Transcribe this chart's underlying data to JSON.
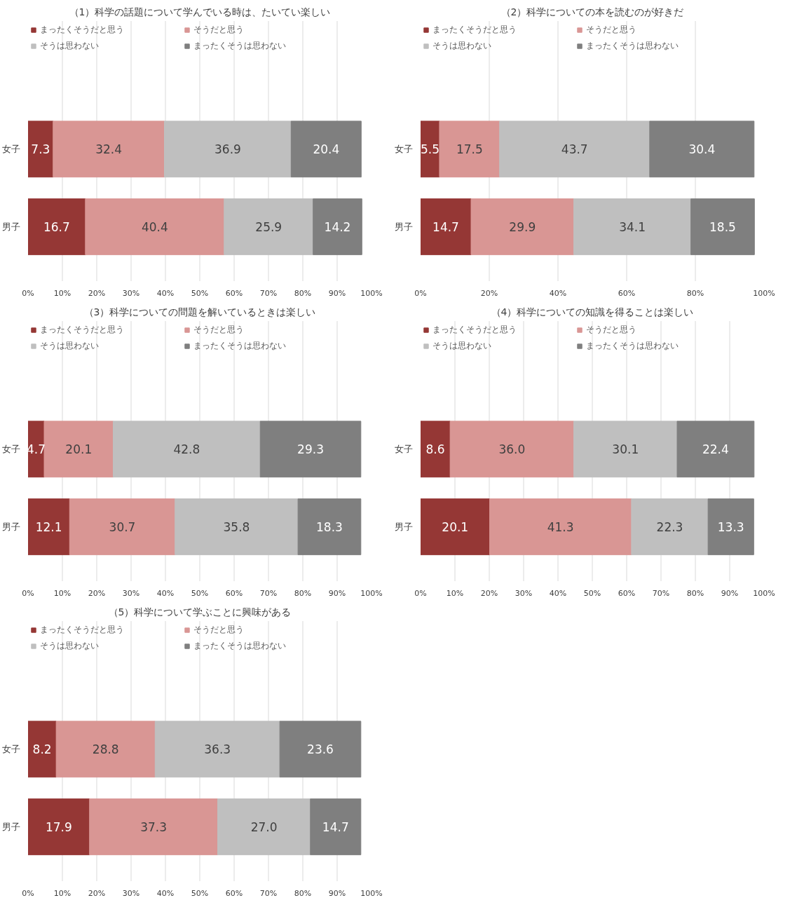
{
  "chart_data": [
    {
      "type": "bar",
      "orientation": "horizontal",
      "stacked": true,
      "title": "（1）科学の話題について学んでいる時は、たいてい楽しい",
      "categories": [
        "女子",
        "男子"
      ],
      "series": [
        {
          "name": "まったくそうだと思う",
          "color": "#953735",
          "values": [
            7.3,
            16.7
          ]
        },
        {
          "name": "そうだと思う",
          "color": "#d99694",
          "values": [
            32.4,
            40.4
          ]
        },
        {
          "name": "そうは思わない",
          "color": "#bfbfbf",
          "values": [
            36.9,
            25.9
          ]
        },
        {
          "name": "まったくそうは思わない",
          "color": "#7f7f7f",
          "values": [
            20.4,
            14.2
          ]
        }
      ],
      "xlim": [
        0,
        100
      ],
      "xticks": [
        {
          "value": 0,
          "label": "0%"
        },
        {
          "value": 10,
          "label": "10%"
        },
        {
          "value": 20,
          "label": "20%"
        },
        {
          "value": 30,
          "label": "30%"
        },
        {
          "value": 40,
          "label": "40%"
        },
        {
          "value": 50,
          "label": "50%"
        },
        {
          "value": 60,
          "label": "60%"
        },
        {
          "value": 70,
          "label": "70%"
        },
        {
          "value": 80,
          "label": "80%"
        },
        {
          "value": 90,
          "label": "90%"
        },
        {
          "value": 100,
          "label": "100%"
        }
      ],
      "data_labels": true,
      "legend": "top",
      "grid": "x"
    },
    {
      "type": "bar",
      "orientation": "horizontal",
      "stacked": true,
      "title": "（2）科学についての本を読むのが好きだ",
      "categories": [
        "女子",
        "男子"
      ],
      "series": [
        {
          "name": "まったくそうだと思う",
          "color": "#953735",
          "values": [
            5.5,
            14.7
          ]
        },
        {
          "name": "そうだと思う",
          "color": "#d99694",
          "values": [
            17.5,
            29.9
          ]
        },
        {
          "name": "そうは思わない",
          "color": "#bfbfbf",
          "values": [
            43.7,
            34.1
          ]
        },
        {
          "name": "まったくそうは思わない",
          "color": "#7f7f7f",
          "values": [
            30.4,
            18.5
          ]
        }
      ],
      "xlim": [
        0,
        100
      ],
      "xticks": [
        {
          "value": 0,
          "label": "0%"
        },
        {
          "value": 20,
          "label": "20%"
        },
        {
          "value": 40,
          "label": "40%"
        },
        {
          "value": 60,
          "label": "60%"
        },
        {
          "value": 80,
          "label": "80%"
        },
        {
          "value": 100,
          "label": "100%"
        }
      ],
      "data_labels": true,
      "legend": "top",
      "grid": "x"
    },
    {
      "type": "bar",
      "orientation": "horizontal",
      "stacked": true,
      "title": "（3）科学についての問題を解いているときは楽しい",
      "categories": [
        "女子",
        "男子"
      ],
      "series": [
        {
          "name": "まったくそうだと思う",
          "color": "#953735",
          "values": [
            4.7,
            12.1
          ]
        },
        {
          "name": "そうだと思う",
          "color": "#d99694",
          "values": [
            20.1,
            30.7
          ]
        },
        {
          "name": "そうは思わない",
          "color": "#bfbfbf",
          "values": [
            42.8,
            35.8
          ]
        },
        {
          "name": "まったくそうは思わない",
          "color": "#7f7f7f",
          "values": [
            29.3,
            18.3
          ]
        }
      ],
      "xlim": [
        0,
        100
      ],
      "xticks": [
        {
          "value": 0,
          "label": "0%"
        },
        {
          "value": 10,
          "label": "10%"
        },
        {
          "value": 20,
          "label": "20%"
        },
        {
          "value": 30,
          "label": "30%"
        },
        {
          "value": 40,
          "label": "40%"
        },
        {
          "value": 50,
          "label": "50%"
        },
        {
          "value": 60,
          "label": "60%"
        },
        {
          "value": 70,
          "label": "70%"
        },
        {
          "value": 80,
          "label": "80%"
        },
        {
          "value": 90,
          "label": "90%"
        },
        {
          "value": 100,
          "label": "100%"
        }
      ],
      "data_labels": true,
      "legend": "top",
      "grid": "x"
    },
    {
      "type": "bar",
      "orientation": "horizontal",
      "stacked": true,
      "title": "（4）科学についての知識を得ることは楽しい",
      "categories": [
        "女子",
        "男子"
      ],
      "series": [
        {
          "name": "まったくそうだと思う",
          "color": "#953735",
          "values": [
            8.6,
            20.1
          ]
        },
        {
          "name": "そうだと思う",
          "color": "#d99694",
          "values": [
            36.0,
            41.3
          ],
          "value_labels": [
            "36.0",
            "41.3"
          ]
        },
        {
          "name": "そうは思わない",
          "color": "#bfbfbf",
          "values": [
            30.1,
            22.3
          ]
        },
        {
          "name": "まったくそうは思わない",
          "color": "#7f7f7f",
          "values": [
            22.4,
            13.3
          ]
        }
      ],
      "xlim": [
        0,
        100
      ],
      "xticks": [
        {
          "value": 0,
          "label": "0%"
        },
        {
          "value": 10,
          "label": "10%"
        },
        {
          "value": 20,
          "label": "20%"
        },
        {
          "value": 30,
          "label": "30%"
        },
        {
          "value": 40,
          "label": "40%"
        },
        {
          "value": 50,
          "label": "50%"
        },
        {
          "value": 60,
          "label": "60%"
        },
        {
          "value": 70,
          "label": "70%"
        },
        {
          "value": 80,
          "label": "80%"
        },
        {
          "value": 90,
          "label": "90%"
        },
        {
          "value": 100,
          "label": "100%"
        }
      ],
      "data_labels": true,
      "legend": "top",
      "grid": "x"
    },
    {
      "type": "bar",
      "orientation": "horizontal",
      "stacked": true,
      "title": "（5）科学について学ぶことに興味がある",
      "categories": [
        "女子",
        "男子"
      ],
      "series": [
        {
          "name": "まったくそうだと思う",
          "color": "#953735",
          "values": [
            8.2,
            17.9
          ]
        },
        {
          "name": "そうだと思う",
          "color": "#d99694",
          "values": [
            28.8,
            37.3
          ]
        },
        {
          "name": "そうは思わない",
          "color": "#bfbfbf",
          "values": [
            36.3,
            27.0
          ],
          "value_labels": [
            "36.3",
            "27.0"
          ]
        },
        {
          "name": "まったくそうは思わない",
          "color": "#7f7f7f",
          "values": [
            23.6,
            14.7
          ]
        }
      ],
      "xlim": [
        0,
        100
      ],
      "xticks": [
        {
          "value": 0,
          "label": "0%"
        },
        {
          "value": 10,
          "label": "10%"
        },
        {
          "value": 20,
          "label": "20%"
        },
        {
          "value": 30,
          "label": "30%"
        },
        {
          "value": 40,
          "label": "40%"
        },
        {
          "value": 50,
          "label": "50%"
        },
        {
          "value": 60,
          "label": "60%"
        },
        {
          "value": 70,
          "label": "70%"
        },
        {
          "value": 80,
          "label": "80%"
        },
        {
          "value": 90,
          "label": "90%"
        },
        {
          "value": 100,
          "label": "100%"
        }
      ],
      "data_labels": true,
      "legend": "top",
      "grid": "x"
    }
  ]
}
